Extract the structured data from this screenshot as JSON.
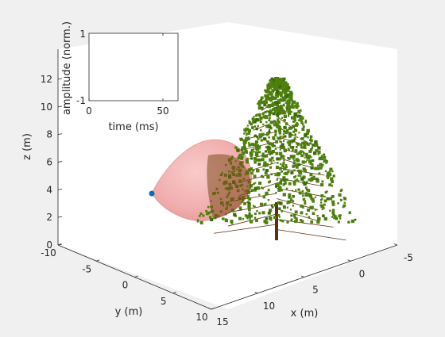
{
  "chart_data": [
    {
      "type": "scatter",
      "projection": "3d",
      "xlabel": "x (m)",
      "ylabel": "y (m)",
      "zlabel": "z (m)",
      "x_ticks": [
        "-5",
        "0",
        "5",
        "10",
        "15"
      ],
      "y_ticks": [
        "-10",
        "-5",
        "0",
        "5",
        "10"
      ],
      "z_ticks": [
        "0",
        "2",
        "4",
        "6",
        "8",
        "10",
        "12"
      ],
      "xlim": [
        -5,
        15
      ],
      "ylim": [
        -10,
        10
      ],
      "zlim": [
        0,
        13
      ],
      "grid": false,
      "objects": [
        {
          "kind": "tree",
          "foliage_color": "#4f7f0e",
          "trunk_color": "#5a3010",
          "base_z": 0,
          "top_z": 12
        },
        {
          "kind": "translucent-ellipsoid",
          "color": "#f2a7a7"
        },
        {
          "kind": "point",
          "color": "#0072bd",
          "z": 3.8
        }
      ]
    },
    {
      "type": "line",
      "xlabel": "time (ms)",
      "ylabel": "amplitude (norm.)",
      "x_ticks": [
        "0",
        "50"
      ],
      "y_ticks": [
        "-1",
        "1"
      ],
      "xlim": [
        0,
        60
      ],
      "ylim": [
        -1,
        1
      ],
      "series": []
    }
  ]
}
